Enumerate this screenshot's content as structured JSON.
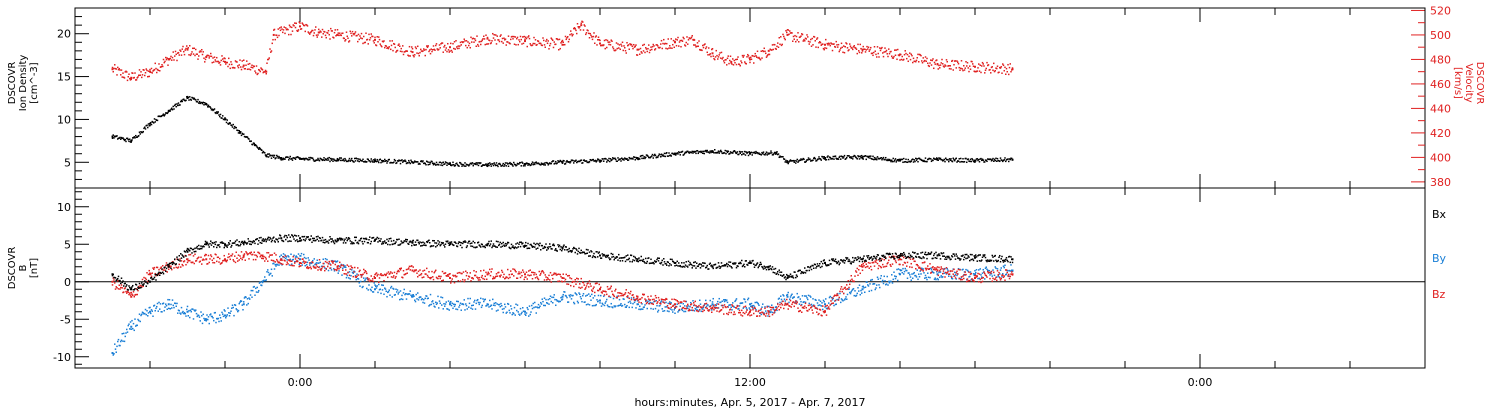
{
  "colors": {
    "axis": "#000000",
    "density": "#000000",
    "velocity": "#e02020",
    "bx": "#000000",
    "by": "#1a7fd6",
    "bz": "#e02020"
  },
  "chart_data": [
    {
      "type": "scatter",
      "panel": "top",
      "ylabel_lines": [
        "DSCOVR",
        "Ion Density",
        "[cm^-3]"
      ],
      "ylim": [
        2,
        23
      ],
      "yticks": [
        5,
        10,
        15,
        20
      ],
      "right_axis": {
        "label_lines": [
          "DSCOVR",
          "Velocity",
          "[km/s]"
        ],
        "ylim": [
          375,
          522
        ],
        "yticks": [
          380,
          400,
          420,
          440,
          460,
          480,
          500,
          520
        ]
      },
      "series": [
        {
          "name": "Ion Density",
          "axis": "left",
          "x_hours": [
            -5,
            -4.5,
            -4,
            -3.5,
            -3,
            -2.5,
            -2,
            -1.6,
            -1.2,
            -0.9,
            -0.5,
            0,
            1,
            2,
            3,
            4,
            5,
            6,
            7,
            8,
            9,
            10,
            11,
            12,
            12.7,
            13,
            14,
            15,
            16,
            17,
            18,
            19
          ],
          "values": [
            8,
            7.5,
            9.5,
            11,
            12.5,
            11.8,
            10,
            8.5,
            7,
            5.8,
            5.5,
            5.4,
            5.3,
            5.2,
            5.0,
            4.8,
            4.7,
            4.8,
            5.0,
            5.2,
            5.5,
            6.0,
            6.3,
            6.0,
            6.1,
            5.0,
            5.5,
            5.6,
            5.2,
            5.3,
            5.2,
            5.3
          ]
        },
        {
          "name": "Velocity",
          "axis": "right",
          "x_hours": [
            -5,
            -4.5,
            -4,
            -3.5,
            -3,
            -2.5,
            -2,
            -1.5,
            -0.9,
            -0.7,
            0,
            0.5,
            1,
            2,
            3,
            4,
            5,
            6,
            7,
            7.5,
            8,
            9,
            10,
            10.5,
            11,
            11.5,
            12,
            12.5,
            13,
            14,
            15,
            16,
            17,
            18,
            19
          ],
          "values": [
            472,
            465,
            470,
            480,
            488,
            482,
            478,
            475,
            470,
            500,
            507,
            502,
            500,
            496,
            486,
            490,
            497,
            495,
            492,
            508,
            493,
            488,
            494,
            496,
            485,
            478,
            480,
            487,
            500,
            492,
            488,
            484,
            476,
            474,
            472
          ]
        }
      ]
    },
    {
      "type": "scatter",
      "panel": "bottom",
      "ylabel_lines": [
        "DSCOVR",
        "B",
        "[nT]"
      ],
      "ylim": [
        -11.5,
        12.5
      ],
      "yticks": [
        -10,
        -5,
        0,
        5,
        10
      ],
      "zero_line": true,
      "legend": [
        "Bx",
        "By",
        "Bz"
      ],
      "series": [
        {
          "name": "Bx",
          "x_hours": [
            -5,
            -4.5,
            -4,
            -3.5,
            -3,
            -2.5,
            -2,
            -1.5,
            -1,
            -0.5,
            0,
            1,
            2,
            3,
            4,
            5,
            6,
            7,
            8,
            9,
            10,
            11,
            12,
            12.5,
            13,
            14,
            15,
            16,
            17,
            18,
            19
          ],
          "values": [
            1,
            -1,
            0,
            2,
            4,
            5,
            5,
            5.2,
            5.5,
            5.8,
            5.8,
            5.5,
            5.5,
            5.2,
            5.0,
            5.0,
            4.8,
            4.5,
            3.5,
            3.0,
            2.5,
            2.0,
            2.5,
            2.0,
            0.5,
            2.5,
            3.0,
            3.5,
            3.5,
            3.2,
            3.0
          ]
        },
        {
          "name": "By",
          "x_hours": [
            -5,
            -4.5,
            -4,
            -3.5,
            -3,
            -2.5,
            -2,
            -1.5,
            -1,
            -0.5,
            0,
            1,
            2,
            3,
            4,
            5,
            6,
            7,
            8,
            9,
            10,
            11,
            12,
            12.5,
            13,
            14,
            15,
            16,
            17,
            18,
            19
          ],
          "values": [
            -9.5,
            -6,
            -4,
            -3,
            -4,
            -5,
            -4.5,
            -3,
            0,
            3,
            3,
            2,
            -1,
            -2,
            -3,
            -3,
            -4,
            -2,
            -2.5,
            -3,
            -3.5,
            -3,
            -3,
            -4,
            -2,
            -3,
            -1,
            1,
            1,
            1,
            1.5
          ]
        },
        {
          "name": "Bz",
          "x_hours": [
            -5,
            -4.5,
            -4,
            -3.5,
            -3,
            -2.5,
            -2,
            -1.5,
            -1,
            -0.5,
            0,
            1,
            2,
            3,
            4,
            5,
            6,
            7,
            8,
            9,
            10,
            11,
            12,
            12.5,
            13,
            14,
            15,
            16,
            17,
            18,
            19
          ],
          "values": [
            0,
            -2,
            1,
            2,
            3,
            3,
            3,
            3.5,
            3.5,
            3.0,
            2.5,
            2.0,
            0.5,
            1.5,
            0.5,
            1.0,
            1.0,
            0.5,
            -1.0,
            -2.0,
            -3.0,
            -3.5,
            -4.0,
            -4.0,
            -3.0,
            -4.0,
            2.0,
            3.0,
            1.5,
            0.5,
            1.0
          ]
        }
      ]
    }
  ],
  "x_axis": {
    "label": "hours:minutes, Apr.  5, 2017 - Apr.  7, 2017",
    "xlim_hours": [
      -6,
      30
    ],
    "major_ticks": [
      {
        "hour": 0,
        "label": "0:00"
      },
      {
        "hour": 12,
        "label": "12:00"
      },
      {
        "hour": 24,
        "label": "0:00"
      }
    ],
    "minor_tick_step_hours": 2
  }
}
